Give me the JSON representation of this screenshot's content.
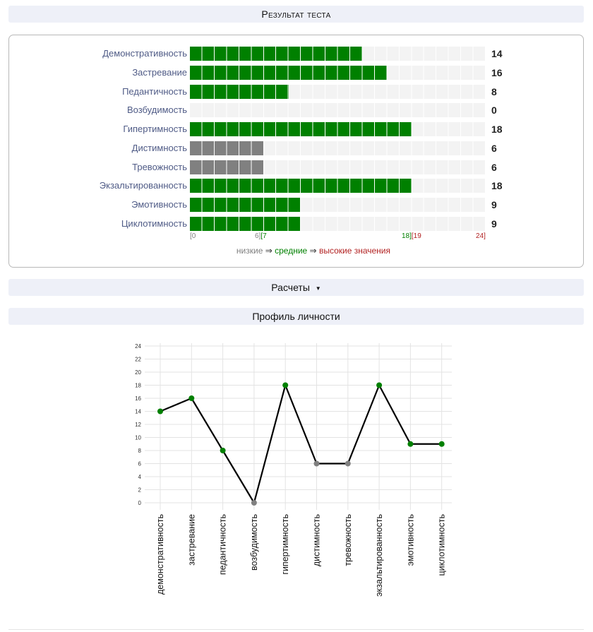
{
  "headers": {
    "result": "Результат теста",
    "calc": "Расчеты",
    "calc_arrow": "▼",
    "profile": "Профиль личности"
  },
  "colors": {
    "low": "#808080",
    "mid": "#008000",
    "high": "#b22222"
  },
  "scale": {
    "t0": "[0",
    "t6": "6][7",
    "t18": "18][19",
    "t24": "24]",
    "max": 24
  },
  "legend": {
    "low": "низкие",
    "arrow1": " ⇒ ",
    "mid": "средние",
    "arrow2": " ⇒ ",
    "high": "высокие значения"
  },
  "rows": [
    {
      "label": "Демонстративность",
      "value": 14,
      "level": "mid"
    },
    {
      "label": "Застревание",
      "value": 16,
      "level": "mid"
    },
    {
      "label": "Педантичность",
      "value": 8,
      "level": "mid"
    },
    {
      "label": "Возбудимость",
      "value": 0,
      "level": "low"
    },
    {
      "label": "Гипертимность",
      "value": 18,
      "level": "mid"
    },
    {
      "label": "Дистимность",
      "value": 6,
      "level": "low"
    },
    {
      "label": "Тревожность",
      "value": 6,
      "level": "low"
    },
    {
      "label": "Экзальтированность",
      "value": 18,
      "level": "mid"
    },
    {
      "label": "Эмотивность",
      "value": 9,
      "level": "mid"
    },
    {
      "label": "Циклотимность",
      "value": 9,
      "level": "mid"
    }
  ],
  "chart_data": {
    "type": "line",
    "title": "Профиль личности",
    "categories": [
      "демонстративность",
      "застревание",
      "педантичность",
      "возбудимость",
      "гипертимность",
      "дистимность",
      "тревожность",
      "экзальтированность",
      "эмотивность",
      "циклотимность"
    ],
    "values": [
      14,
      16,
      8,
      0,
      18,
      6,
      6,
      18,
      9,
      9
    ],
    "point_levels": [
      "mid",
      "mid",
      "mid",
      "low",
      "mid",
      "low",
      "low",
      "mid",
      "mid",
      "mid"
    ],
    "ylim": [
      0,
      24
    ],
    "yticks": [
      0,
      2,
      4,
      6,
      8,
      10,
      12,
      14,
      16,
      18,
      20,
      22,
      24
    ],
    "grid": true,
    "line_color": "#000000"
  }
}
